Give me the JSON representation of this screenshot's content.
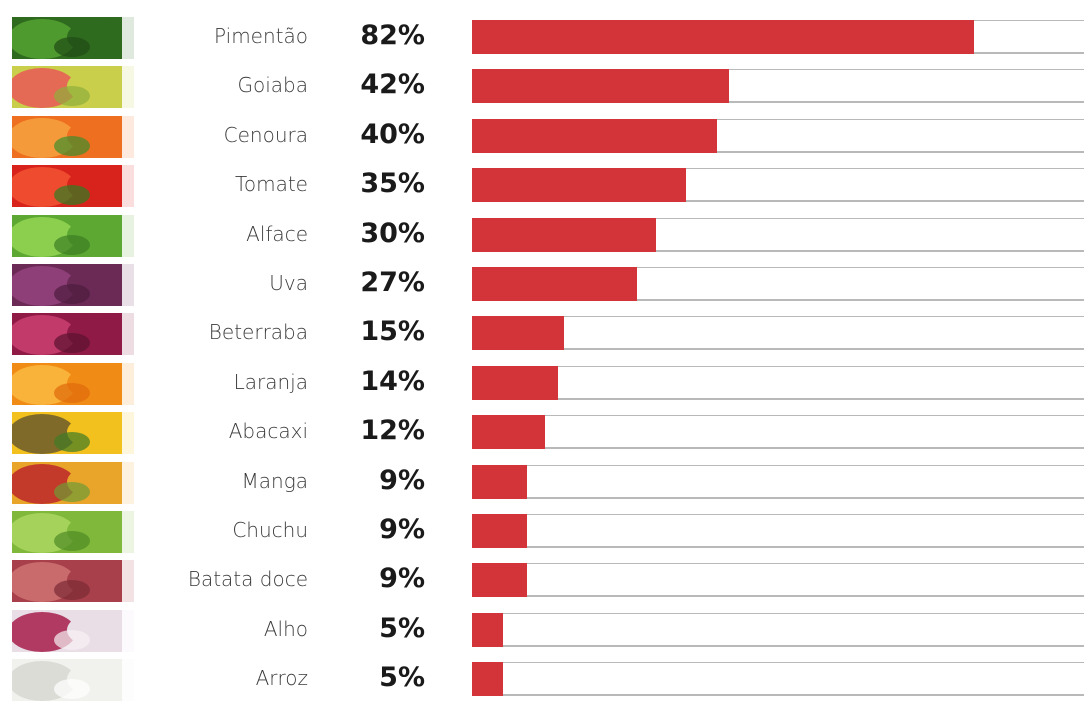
{
  "chart_data": {
    "type": "bar",
    "orientation": "horizontal",
    "categories": [
      "Pimentão",
      "Goiaba",
      "Cenoura",
      "Tomate",
      "Alface",
      "Uva",
      "Beterraba",
      "Laranja",
      "Abacaxi",
      "Manga",
      "Chuchu",
      "Batata doce",
      "Alho",
      "Arroz"
    ],
    "values": [
      82,
      42,
      40,
      35,
      30,
      27,
      15,
      14,
      12,
      9,
      9,
      9,
      5,
      5
    ],
    "value_labels": [
      "82%",
      "42%",
      "40%",
      "35%",
      "30%",
      "27%",
      "15%",
      "14%",
      "12%",
      "9%",
      "9%",
      "9%",
      "5%",
      "5%"
    ],
    "unit": "%",
    "xlim": [
      0,
      100
    ],
    "bar_color": "#d2343a",
    "track_color": "#b9b9b9",
    "grid": false,
    "legend": "none"
  },
  "thumbnails": [
    {
      "icon": "green-pepper-icon",
      "colors": [
        "#2f6b1f",
        "#4f9a2e",
        "#1f4a15"
      ]
    },
    {
      "icon": "guava-icon",
      "colors": [
        "#c9cf4a",
        "#e46a55",
        "#8fae3a"
      ]
    },
    {
      "icon": "carrot-icon",
      "colors": [
        "#ee6f1f",
        "#f59a3a",
        "#3f8d2c"
      ]
    },
    {
      "icon": "tomato-icon",
      "colors": [
        "#d8231c",
        "#ef4b2f",
        "#2d7d21"
      ]
    },
    {
      "icon": "lettuce-icon",
      "colors": [
        "#5da832",
        "#8ccf4f",
        "#3c7d22"
      ]
    },
    {
      "icon": "grape-icon",
      "colors": [
        "#6b2a56",
        "#8e3f77",
        "#4d1d3e"
      ]
    },
    {
      "icon": "beet-icon",
      "colors": [
        "#8f1a45",
        "#c23a6a",
        "#5b1330"
      ]
    },
    {
      "icon": "orange-icon",
      "colors": [
        "#f08c15",
        "#f9b33b",
        "#e06a0c"
      ]
    },
    {
      "icon": "pineapple-icon",
      "colors": [
        "#f2c11e",
        "#7f6a2a",
        "#3f7a25"
      ]
    },
    {
      "icon": "mango-icon",
      "colors": [
        "#e8a52a",
        "#c43a2a",
        "#6e9b35"
      ]
    },
    {
      "icon": "chayote-icon",
      "colors": [
        "#7fb83a",
        "#a5d25a",
        "#4f8a25"
      ]
    },
    {
      "icon": "sweet-potato-icon",
      "colors": [
        "#a8404b",
        "#c96a6c",
        "#7a2b34"
      ]
    },
    {
      "icon": "garlic-icon",
      "colors": [
        "#e9dde6",
        "#b03a62",
        "#f6f1f4"
      ]
    },
    {
      "icon": "rice-icon",
      "colors": [
        "#f1f1ee",
        "#dcdcd6",
        "#ffffff"
      ]
    }
  ]
}
